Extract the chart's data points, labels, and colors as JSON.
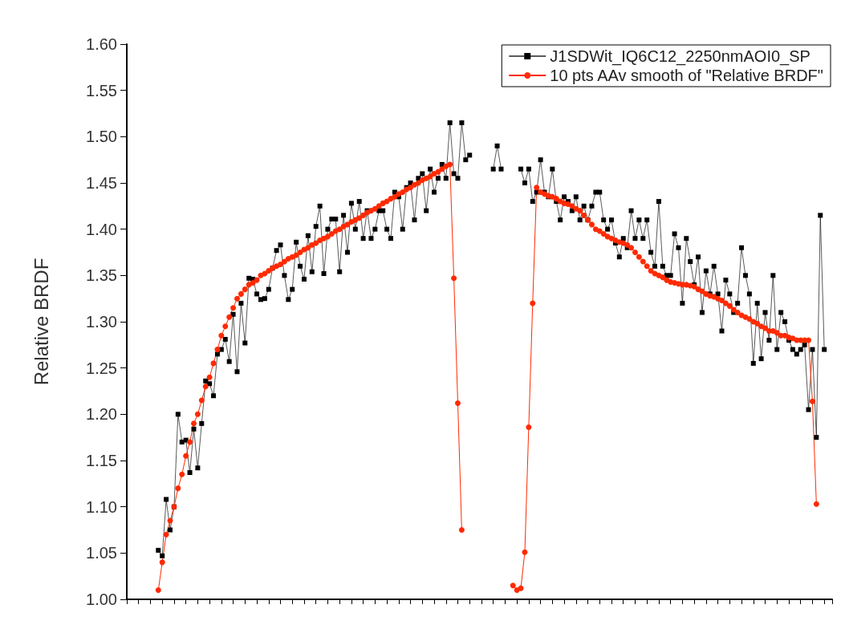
{
  "chart_data": {
    "type": "line",
    "ylabel": "Relative BRDF",
    "categories": [
      null,
      null,
      null,
      null,
      null,
      null,
      null,
      null,
      null,
      null,
      null,
      null,
      null,
      null,
      null,
      null,
      null,
      null,
      null,
      null,
      null,
      null,
      null,
      null,
      null,
      null,
      null,
      null,
      null,
      null,
      null,
      null,
      null,
      null,
      null,
      null,
      null,
      null,
      null,
      null,
      null,
      null,
      null,
      null,
      null,
      null,
      null,
      null,
      null,
      null,
      null,
      null,
      null,
      null,
      null,
      null,
      null,
      null,
      null,
      null,
      null,
      null,
      null,
      null,
      null,
      null,
      null,
      null,
      null,
      null,
      null,
      null,
      null,
      null,
      null,
      null,
      null,
      null,
      null,
      null,
      null,
      null,
      null,
      null,
      null,
      null,
      null,
      null,
      null,
      null,
      null,
      null,
      null,
      null,
      null,
      null,
      null,
      null,
      null,
      null,
      null,
      null,
      null,
      null,
      null,
      null,
      null,
      null,
      null,
      null,
      null,
      null,
      null,
      null,
      null,
      null,
      null,
      null,
      null,
      null,
      null,
      null,
      null,
      null,
      null,
      null,
      null,
      null,
      null,
      null,
      null,
      null,
      null,
      null,
      null,
      null,
      null,
      null,
      null,
      null,
      null,
      null,
      null,
      null,
      null,
      null,
      null,
      null,
      null,
      null,
      null,
      null,
      null,
      null,
      null,
      null,
      null,
      null,
      null,
      null,
      null,
      null,
      null,
      null,
      null,
      null,
      null,
      null,
      null,
      null,
      null,
      null,
      null,
      null,
      null,
      null,
      null,
      null,
      null,
      null
    ],
    "series": [
      {
        "name": "J1SDWit_IQ6C12_2250nmAOI0_SP",
        "color": "#000000",
        "marker": "square",
        "values": [
          null,
          null,
          null,
          null,
          null,
          null,
          null,
          null,
          1.053,
          1.047,
          1.108,
          1.075,
          1.1,
          1.2,
          1.17,
          1.172,
          1.137,
          1.184,
          1.142,
          1.19,
          1.236,
          1.233,
          1.22,
          1.265,
          1.27,
          1.281,
          1.257,
          1.308,
          1.246,
          1.32,
          1.277,
          1.347,
          1.346,
          1.33,
          1.324,
          1.325,
          1.335,
          1.358,
          1.377,
          1.383,
          1.35,
          1.324,
          1.335,
          1.386,
          1.36,
          1.346,
          1.393,
          1.354,
          1.403,
          1.425,
          1.352,
          1.4,
          1.411,
          1.411,
          1.354,
          1.415,
          1.375,
          1.428,
          1.4,
          1.43,
          1.39,
          1.42,
          1.39,
          1.4,
          1.42,
          1.42,
          1.4,
          1.39,
          1.44,
          1.435,
          1.4,
          1.445,
          1.45,
          1.41,
          1.455,
          1.46,
          1.42,
          1.465,
          1.44,
          1.455,
          1.47,
          1.455,
          1.515,
          1.46,
          1.455,
          1.515,
          1.475,
          1.48,
          null,
          null,
          null,
          null,
          null,
          1.465,
          1.49,
          1.465,
          null,
          null,
          null,
          null,
          1.465,
          1.45,
          1.465,
          1.43,
          1.44,
          1.475,
          1.44,
          1.435,
          1.465,
          1.43,
          1.41,
          1.435,
          1.43,
          1.42,
          1.435,
          1.41,
          1.425,
          1.41,
          1.425,
          1.44,
          1.44,
          1.41,
          1.4,
          1.41,
          1.385,
          1.37,
          1.39,
          1.38,
          1.42,
          1.39,
          1.41,
          1.39,
          1.41,
          1.375,
          1.36,
          1.43,
          1.36,
          1.35,
          1.35,
          1.395,
          1.38,
          1.32,
          1.39,
          1.365,
          1.34,
          1.37,
          1.31,
          1.355,
          1.33,
          1.36,
          1.33,
          1.29,
          1.345,
          1.33,
          1.31,
          1.32,
          1.38,
          1.35,
          1.33,
          1.255,
          1.32,
          1.26,
          1.31,
          1.28,
          1.35,
          1.27,
          1.31,
          1.3,
          1.28,
          1.27,
          1.265,
          1.27,
          1.275,
          1.205,
          1.27,
          1.175,
          1.415,
          1.27,
          null,
          null
        ]
      },
      {
        "name": "10 pts AAv smooth of \"Relative BRDF\"",
        "color": "#ff2a00",
        "marker": "circle",
        "values": [
          null,
          null,
          null,
          null,
          null,
          null,
          null,
          null,
          1.01,
          1.04,
          1.07,
          1.085,
          1.1,
          1.12,
          1.135,
          1.155,
          1.17,
          1.19,
          1.2,
          1.215,
          1.23,
          1.24,
          1.255,
          1.27,
          1.285,
          1.295,
          1.305,
          1.315,
          1.325,
          1.33,
          1.335,
          1.34,
          1.342,
          1.345,
          1.35,
          1.352,
          1.355,
          1.358,
          1.36,
          1.362,
          1.365,
          1.368,
          1.37,
          1.372,
          1.375,
          1.378,
          1.38,
          1.383,
          1.385,
          1.388,
          1.39,
          1.392,
          1.395,
          1.398,
          1.4,
          1.403,
          1.405,
          1.408,
          1.41,
          1.412,
          1.415,
          1.418,
          1.42,
          1.422,
          1.425,
          1.428,
          1.43,
          1.433,
          1.435,
          1.438,
          1.44,
          1.443,
          1.445,
          1.448,
          1.45,
          1.453,
          1.455,
          1.457,
          1.46,
          1.462,
          1.465,
          1.468,
          1.47,
          1.347,
          1.212,
          1.075,
          null,
          null,
          null,
          null,
          null,
          null,
          null,
          null,
          null,
          null,
          null,
          null,
          1.015,
          1.01,
          1.012,
          1.051,
          1.186,
          1.32,
          1.445,
          1.44,
          1.438,
          1.436,
          1.435,
          1.433,
          1.43,
          1.428,
          1.427,
          1.425,
          1.422,
          1.42,
          1.415,
          1.41,
          1.405,
          1.4,
          1.398,
          1.395,
          1.392,
          1.39,
          1.388,
          1.386,
          1.385,
          1.383,
          1.38,
          1.375,
          1.37,
          1.365,
          1.36,
          1.355,
          1.352,
          1.35,
          1.348,
          1.345,
          1.343,
          1.342,
          1.341,
          1.34,
          1.34,
          1.339,
          1.338,
          1.335,
          1.333,
          1.33,
          1.328,
          1.327,
          1.325,
          1.323,
          1.32,
          1.317,
          1.313,
          1.31,
          1.307,
          1.305,
          1.303,
          1.3,
          1.298,
          1.295,
          1.293,
          1.29,
          1.29,
          1.288,
          1.285,
          1.285,
          1.283,
          1.282,
          1.28,
          1.28,
          1.28,
          1.28,
          1.214,
          1.103,
          null,
          null,
          null,
          null
        ]
      }
    ],
    "ylim": [
      1.0,
      1.6
    ],
    "yticks": [
      {
        "value": 1.0,
        "label": "1.00"
      },
      {
        "value": 1.05,
        "label": "1.05"
      },
      {
        "value": 1.1,
        "label": "1.10"
      },
      {
        "value": 1.15,
        "label": "1.15"
      },
      {
        "value": 1.2,
        "label": "1.20"
      },
      {
        "value": 1.25,
        "label": "1.25"
      },
      {
        "value": 1.3,
        "label": "1.30"
      },
      {
        "value": 1.35,
        "label": "1.35"
      },
      {
        "value": 1.4,
        "label": "1.40"
      },
      {
        "value": 1.45,
        "label": "1.45"
      },
      {
        "value": 1.5,
        "label": "1.50"
      },
      {
        "value": 1.55,
        "label": "1.55"
      },
      {
        "value": 1.6,
        "label": "1.60"
      }
    ],
    "tick_labels": "y",
    "legend": "top right",
    "line_style": "solid"
  }
}
